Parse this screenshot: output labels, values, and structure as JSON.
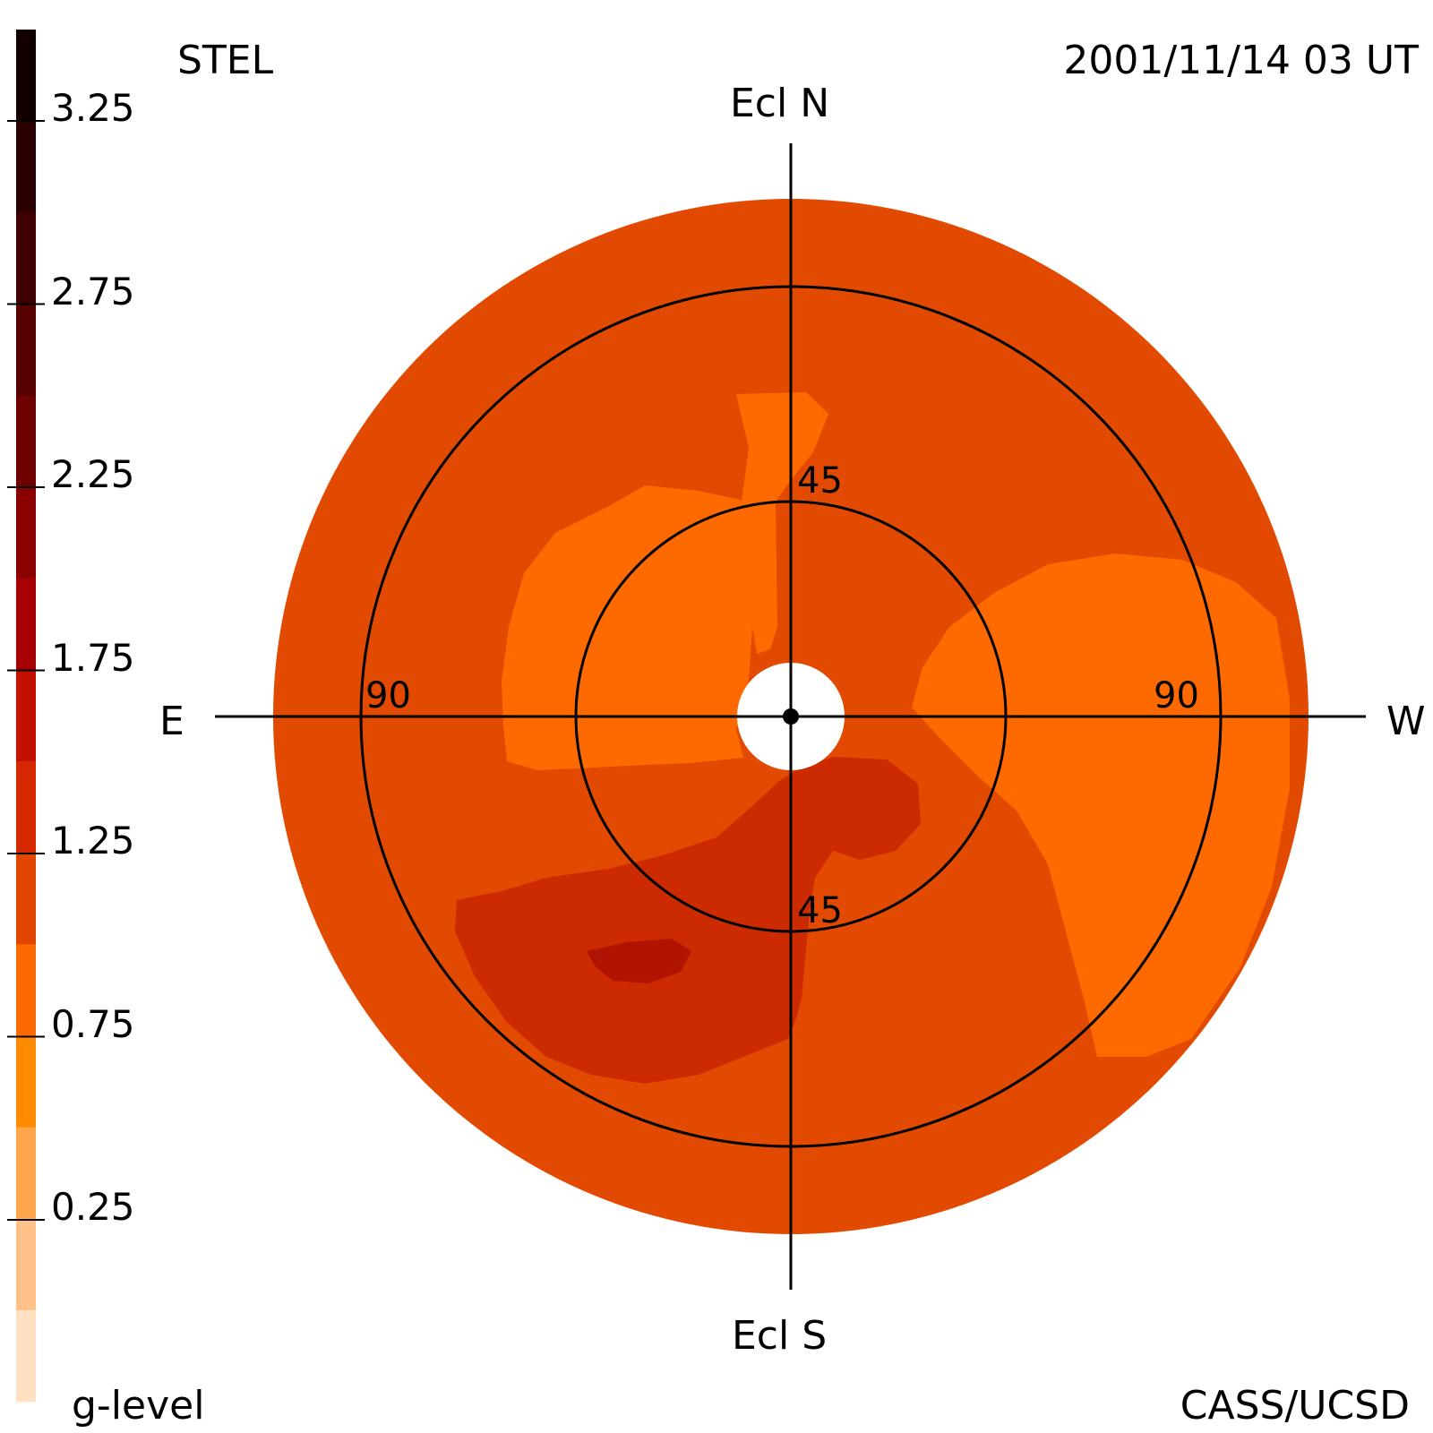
{
  "header": {
    "instrument": "STEL",
    "timestamp": "2001/11/14 03 UT"
  },
  "footer": {
    "colorbar_label": "g-level",
    "credit": "CASS/UCSD"
  },
  "directions": {
    "north": "Ecl N",
    "south": "Ecl S",
    "east": "E",
    "west": "W"
  },
  "ring_labels": {
    "inner_top": "45",
    "inner_bottom": "45",
    "outer_left": "90",
    "outer_right": "90"
  },
  "colorbar": {
    "tick_labels": [
      "3.25",
      "2.75",
      "2.25",
      "1.75",
      "1.25",
      "0.75",
      "0.25"
    ],
    "colors": [
      "#120000",
      "#2a0000",
      "#3e0000",
      "#560000",
      "#6e0000",
      "#8a0000",
      "#a80000",
      "#c41000",
      "#d62800",
      "#e14500",
      "#ff6a00",
      "#ff8c00",
      "#ffa64d",
      "#ffc187",
      "#ffe0c0"
    ]
  },
  "colors": {
    "level_1_00": "#e14a00",
    "level_0_75": "#ff6a00",
    "level_1_25": "#cc2a00",
    "level_1_50": "#b01400",
    "lines": "#000000"
  }
}
